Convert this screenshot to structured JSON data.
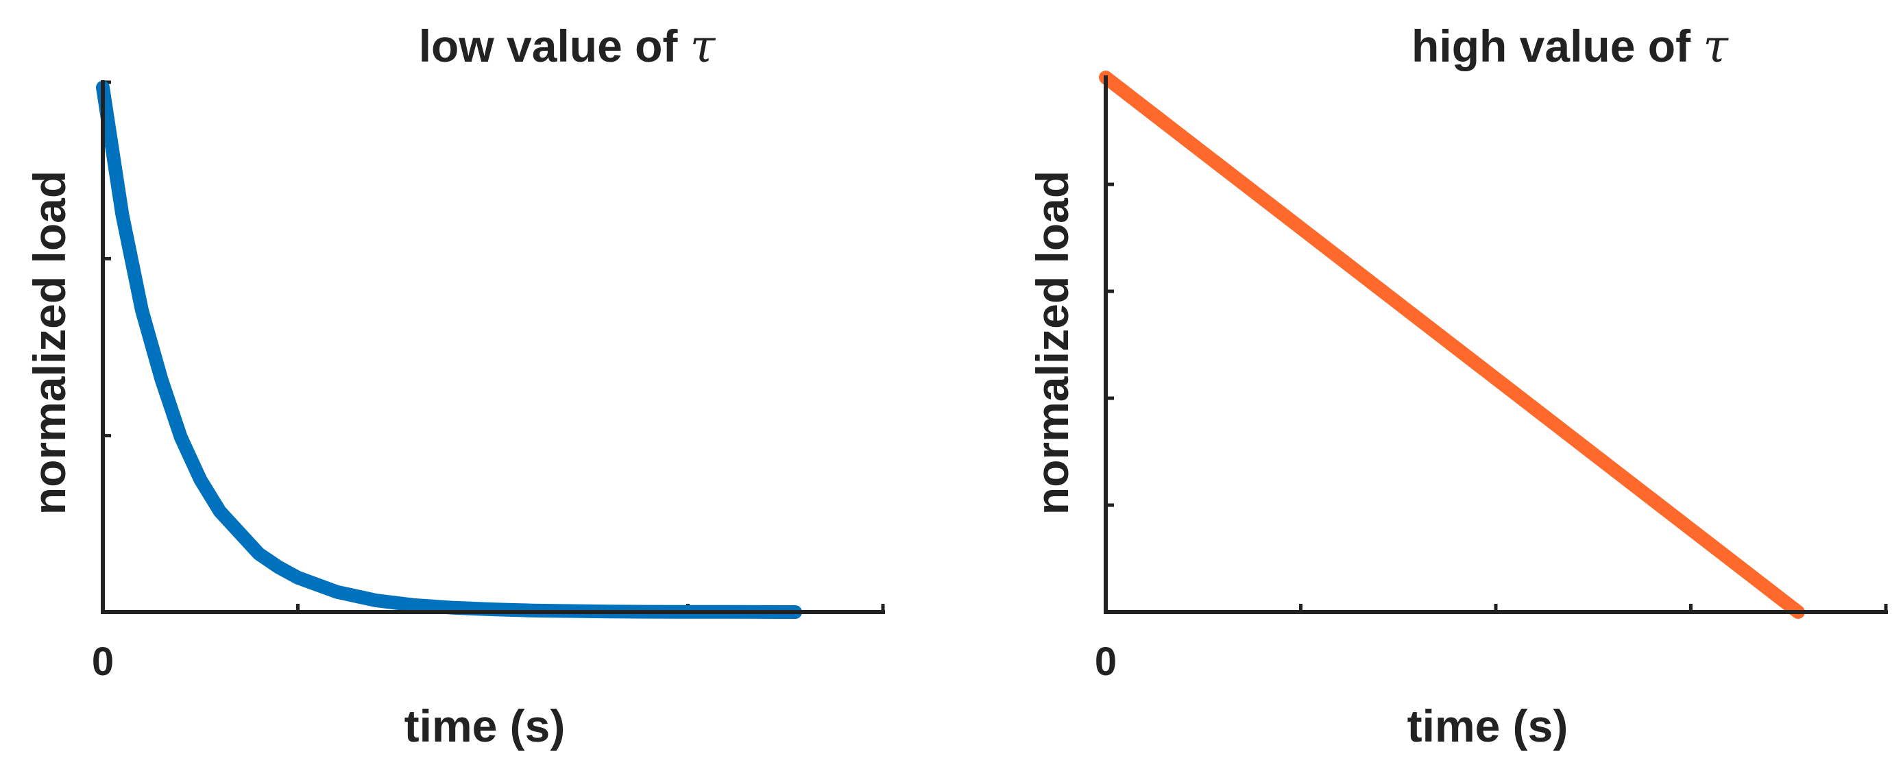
{
  "colors": {
    "low_tau_series": "#0072BD",
    "high_tau_series": "#FF6A2C",
    "axes": "#222222"
  },
  "chart_data": [
    {
      "type": "line",
      "title": "low value of",
      "title_symbol": "τ",
      "xlabel": "time (s)",
      "ylabel": "normalized load",
      "x_tick_labels": [
        "0"
      ],
      "xlim": [
        0,
        4
      ],
      "ylim": [
        0,
        1
      ],
      "x_ticks": [
        0,
        1,
        2,
        3,
        4
      ],
      "y_ticks": [
        0,
        0.333,
        0.667,
        1
      ],
      "grid": false,
      "series": [
        {
          "color": "#0072BD",
          "x": [
            0,
            0.1,
            0.2,
            0.3,
            0.4,
            0.5,
            0.6,
            0.7,
            0.8,
            0.9,
            1.0,
            1.2,
            1.4,
            1.6,
            1.8,
            2.0,
            2.2,
            2.4,
            2.6,
            2.8,
            3.0,
            3.2,
            3.4,
            3.55
          ],
          "y": [
            0.99,
            0.75,
            0.57,
            0.44,
            0.33,
            0.25,
            0.19,
            0.15,
            0.11,
            0.085,
            0.065,
            0.038,
            0.022,
            0.013,
            0.008,
            0.005,
            0.003,
            0.002,
            0.001,
            0.0005,
            0.0003,
            0.0002,
            0.0001,
            0.0
          ]
        }
      ]
    },
    {
      "type": "line",
      "title": "high value of",
      "title_symbol": "τ",
      "xlabel": "time (s)",
      "ylabel": "normalized load",
      "x_tick_labels": [
        "0"
      ],
      "xlim": [
        0,
        4
      ],
      "ylim": [
        0,
        1
      ],
      "x_ticks": [
        0,
        1,
        2,
        3,
        4
      ],
      "y_ticks": [
        0,
        0.2,
        0.4,
        0.6,
        0.8,
        1
      ],
      "grid": false,
      "series": [
        {
          "color": "#FF6A2C",
          "x": [
            0,
            3.55
          ],
          "y": [
            1.0,
            0.0
          ]
        }
      ]
    }
  ]
}
